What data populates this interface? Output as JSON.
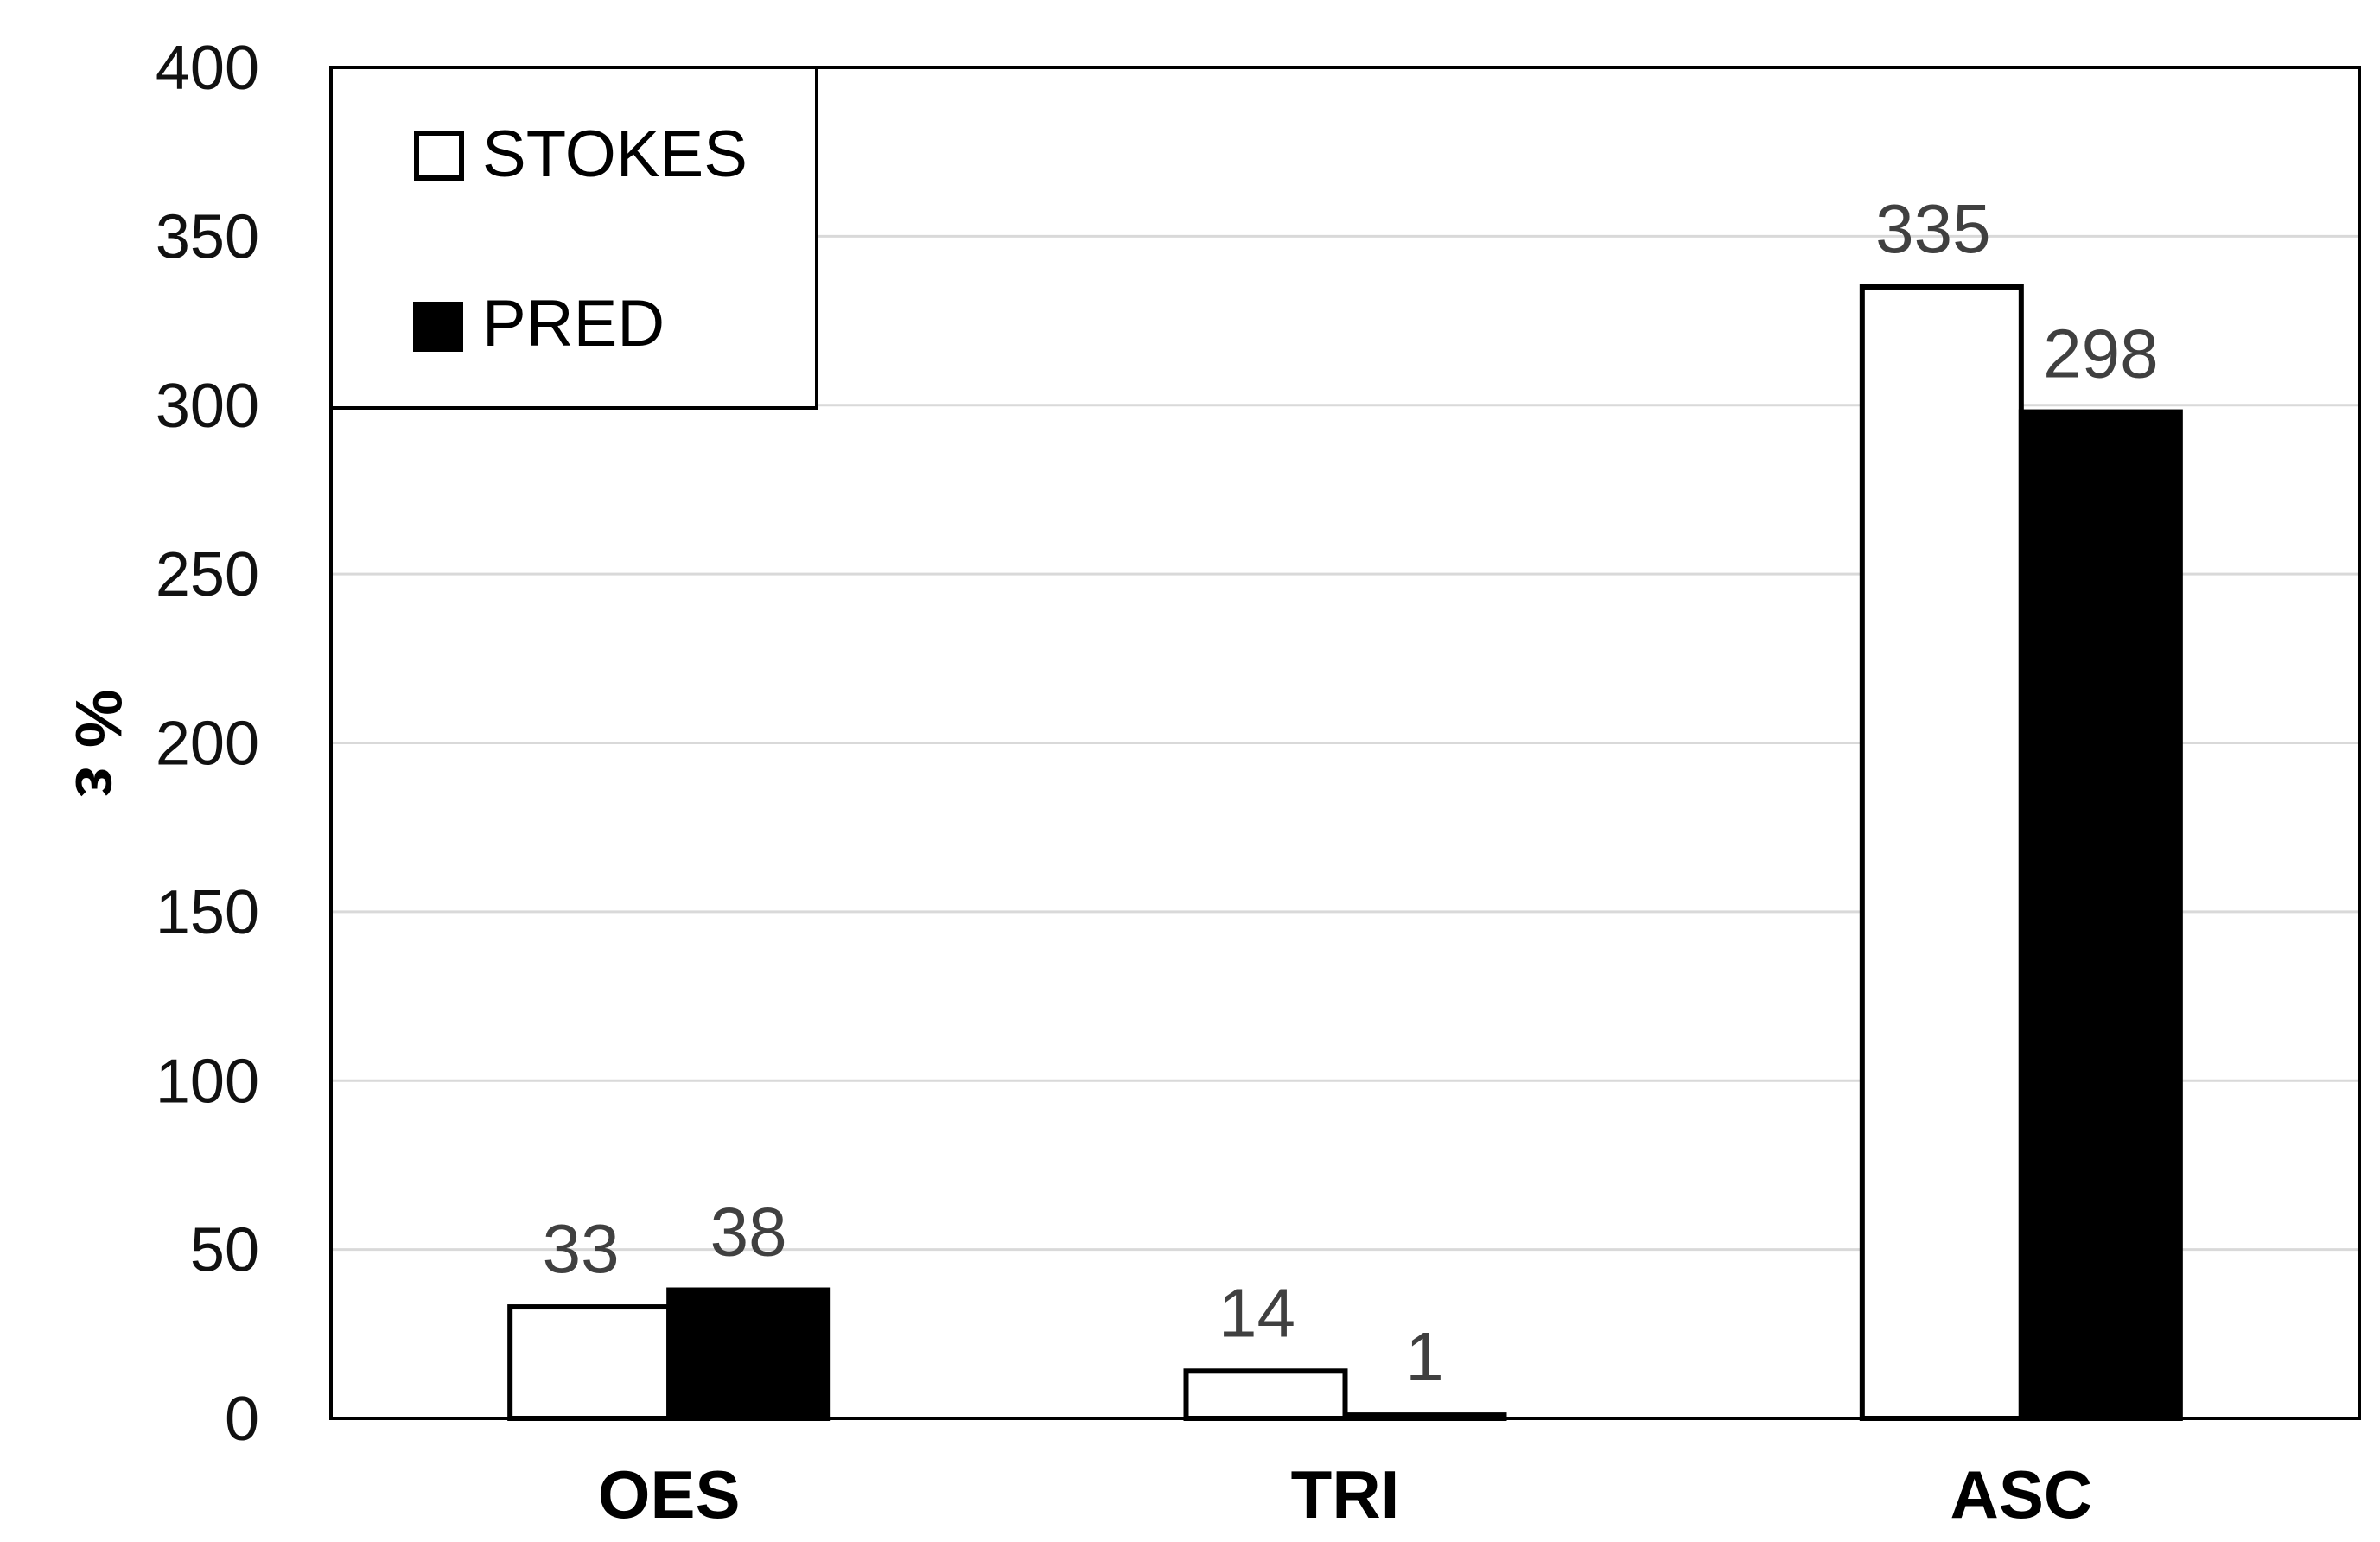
{
  "chart_data": {
    "type": "bar",
    "categories": [
      "OES",
      "TRI",
      "ASC"
    ],
    "series": [
      {
        "name": "STOKES",
        "values": [
          33,
          14,
          335
        ],
        "color": "#ffffff",
        "stroke": "#000000"
      },
      {
        "name": "PRED",
        "values": [
          38,
          1,
          298
        ],
        "color": "#000000",
        "stroke": "#000000"
      }
    ],
    "title": "",
    "xlabel": "",
    "ylabel": "% ε",
    "ylim": [
      0,
      400
    ],
    "yticks": [
      0,
      50,
      100,
      150,
      200,
      250,
      300,
      350,
      400
    ],
    "grid": true,
    "legend_position": "top-left",
    "show_data_labels": true
  }
}
